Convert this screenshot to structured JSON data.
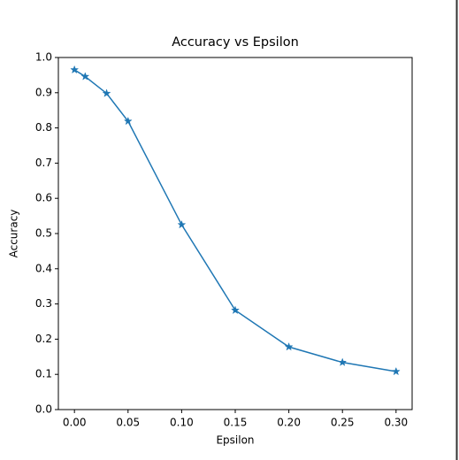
{
  "chart_data": {
    "type": "line",
    "title": "Accuracy vs Epsilon",
    "x_label": "Epsilon",
    "y_label": "Accuracy",
    "x": [
      0,
      0.01,
      0.03,
      0.05,
      0.1,
      0.15,
      0.2,
      0.25,
      0.3
    ],
    "series": [
      {
        "name": "Accuracy",
        "color": "#1f77b4",
        "values": [
          0.965,
          0.946,
          0.898,
          0.819,
          0.525,
          0.282,
          0.178,
          0.134,
          0.108
        ]
      }
    ],
    "marker": "star",
    "xlim": [
      -0.015,
      0.315
    ],
    "xticks": [
      {
        "value": 0,
        "label": "0.00"
      },
      0.05,
      {
        "value": 0.1,
        "label": "0.10"
      },
      0.15,
      {
        "value": 0.2,
        "label": "0.20"
      },
      0.25,
      {
        "value": 0.3,
        "label": "0.30"
      }
    ],
    "ylim": [
      0,
      1
    ],
    "yticks": [
      {
        "value": 0,
        "label": "0.0"
      },
      0.1,
      0.2,
      0.3,
      0.4,
      0.5,
      0.6,
      0.7,
      0.8,
      0.9,
      {
        "value": 1,
        "label": "1.0"
      }
    ]
  }
}
